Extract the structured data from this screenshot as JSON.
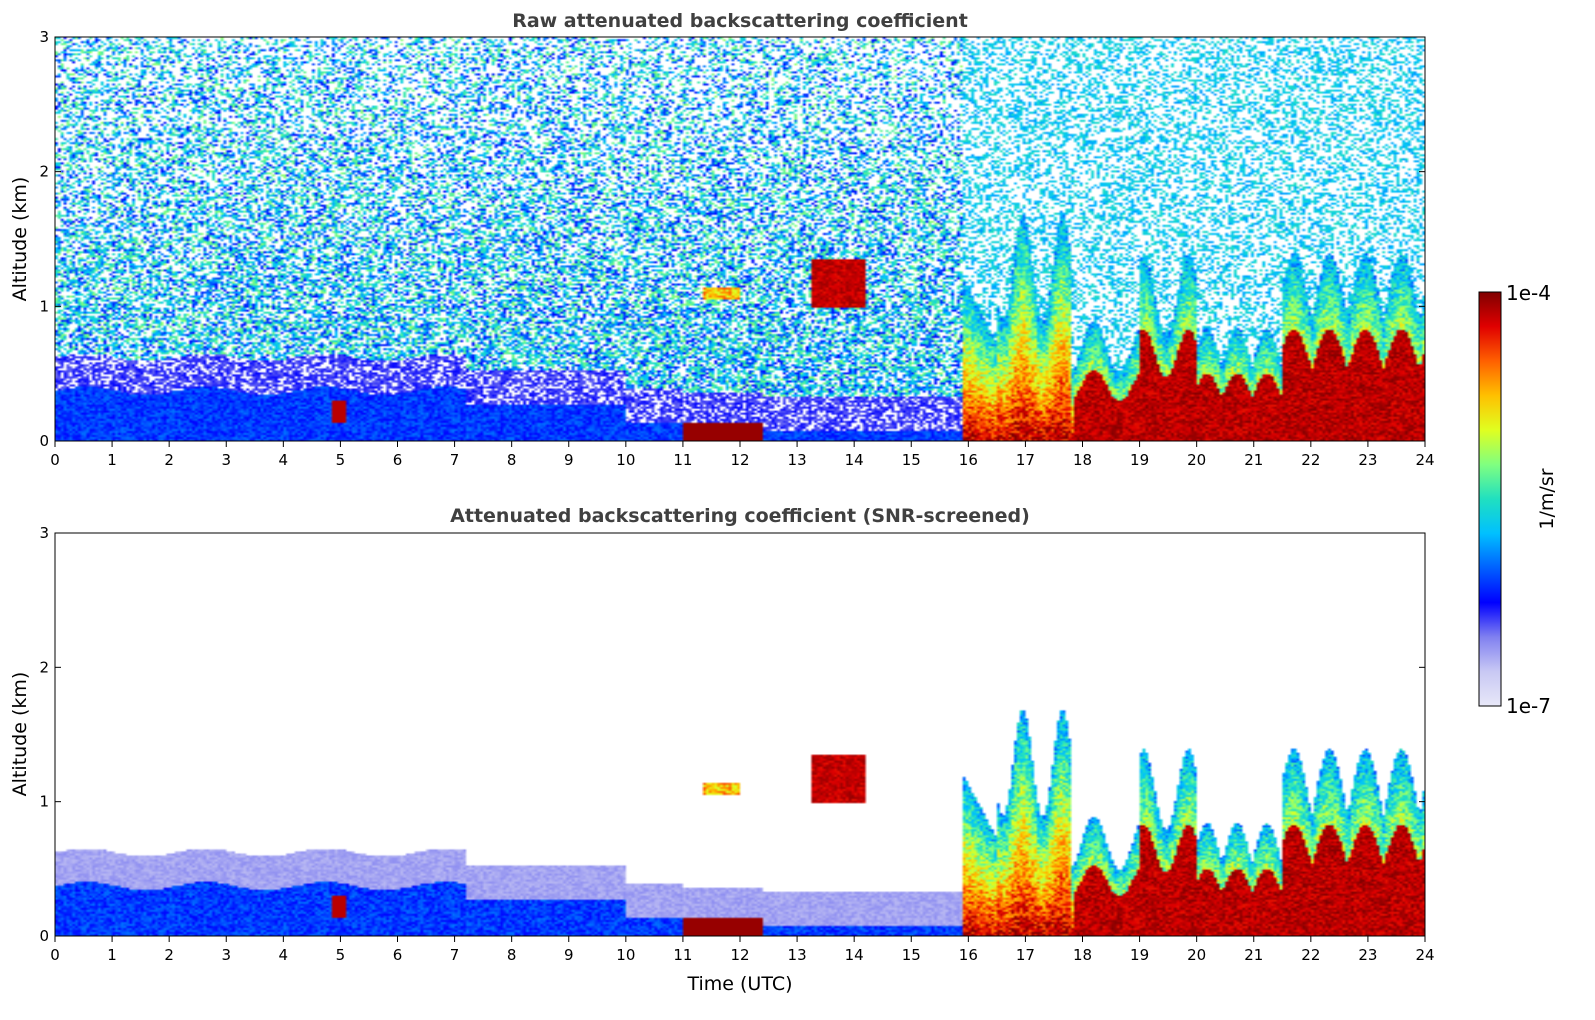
{
  "chart_data": [
    {
      "type": "heatmap",
      "title": "Raw attenuated backscattering coefficient",
      "xlabel": "",
      "ylabel": "Altitude (km)",
      "xlim": [
        0,
        24
      ],
      "ylim": [
        0,
        3
      ],
      "xticks": [
        "0",
        "1",
        "2",
        "3",
        "4",
        "5",
        "6",
        "7",
        "8",
        "9",
        "10",
        "11",
        "12",
        "13",
        "14",
        "15",
        "16",
        "17",
        "18",
        "19",
        "20",
        "21",
        "22",
        "23",
        "24"
      ],
      "yticks": [
        "0",
        "1",
        "2",
        "3"
      ],
      "screened": false
    },
    {
      "type": "heatmap",
      "title": "Attenuated backscattering coefficient (SNR-screened)",
      "xlabel": "Time (UTC)",
      "ylabel": "Altitude (km)",
      "xlim": [
        0,
        24
      ],
      "ylim": [
        0,
        3
      ],
      "xticks": [
        "0",
        "1",
        "2",
        "3",
        "4",
        "5",
        "6",
        "7",
        "8",
        "9",
        "10",
        "11",
        "12",
        "13",
        "14",
        "15",
        "16",
        "17",
        "18",
        "19",
        "20",
        "21",
        "22",
        "23",
        "24"
      ],
      "yticks": [
        "0",
        "1",
        "2",
        "3"
      ],
      "screened": true
    }
  ],
  "colorbar": {
    "label": "1/m/sr",
    "max_label": "1e-4",
    "min_label": "1e-7",
    "colormap": [
      "#e8e8f8",
      "#c8c8f4",
      "#8080f0",
      "#0000ff",
      "#0060ff",
      "#00c0ff",
      "#20e0c0",
      "#80ff80",
      "#e0ff20",
      "#ffc000",
      "#ff6000",
      "#e00000",
      "#800000"
    ]
  }
}
